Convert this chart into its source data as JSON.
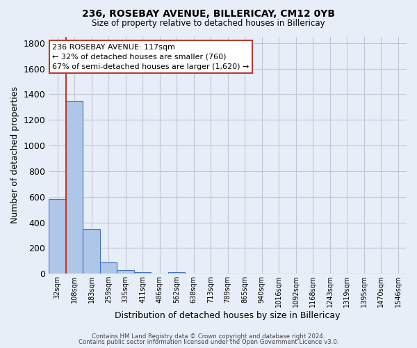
{
  "title1": "236, ROSEBAY AVENUE, BILLERICAY, CM12 0YB",
  "title2": "Size of property relative to detached houses in Billericay",
  "xlabel": "Distribution of detached houses by size in Billericay",
  "ylabel": "Number of detached properties",
  "footer1": "Contains HM Land Registry data © Crown copyright and database right 2024.",
  "footer2": "Contains public sector information licensed under the Open Government Licence v3.0.",
  "categories": [
    "32sqm",
    "108sqm",
    "183sqm",
    "259sqm",
    "335sqm",
    "411sqm",
    "486sqm",
    "562sqm",
    "638sqm",
    "713sqm",
    "789sqm",
    "865sqm",
    "940sqm",
    "1016sqm",
    "1092sqm",
    "1168sqm",
    "1243sqm",
    "1319sqm",
    "1395sqm",
    "1470sqm",
    "1546sqm"
  ],
  "values": [
    580,
    1350,
    350,
    90,
    27,
    15,
    0,
    15,
    0,
    0,
    0,
    0,
    0,
    0,
    0,
    0,
    0,
    0,
    0,
    0,
    0
  ],
  "bar_color": "#aec6e8",
  "bar_edge_color": "#4472c4",
  "bg_color": "#e8eef7",
  "grid_color": "#c0c8d8",
  "vline_color": "#c0392b",
  "vline_x_index": 1,
  "annotation_line1": "236 ROSEBAY AVENUE: 117sqm",
  "annotation_line2": "← 32% of detached houses are smaller (760)",
  "annotation_line3": "67% of semi-detached houses are larger (1,620) →",
  "annotation_box_color": "#ffffff",
  "annotation_box_edge": "#c0392b",
  "ylim": [
    0,
    1850
  ],
  "yticks": [
    0,
    200,
    400,
    600,
    800,
    1000,
    1200,
    1400,
    1600,
    1800
  ]
}
